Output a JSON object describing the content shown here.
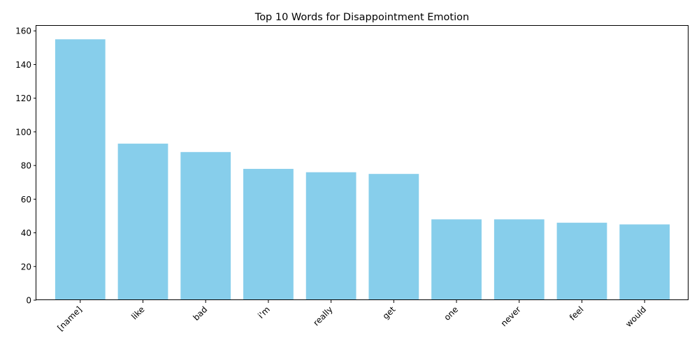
{
  "chart_data": {
    "type": "bar",
    "title": "Top 10 Words for Disappointment Emotion",
    "xlabel": "",
    "ylabel": "",
    "categories": [
      "[name]",
      "like",
      "bad",
      "i'm",
      "really",
      "get",
      "one",
      "never",
      "feel",
      "would"
    ],
    "values": [
      155,
      93,
      88,
      78,
      76,
      75,
      48,
      48,
      46,
      45
    ],
    "ylim": [
      0,
      163
    ],
    "yticks": [
      0,
      20,
      40,
      60,
      80,
      100,
      120,
      140,
      160
    ],
    "bar_color": "#87ceeb",
    "grid": false,
    "legend": "none"
  }
}
